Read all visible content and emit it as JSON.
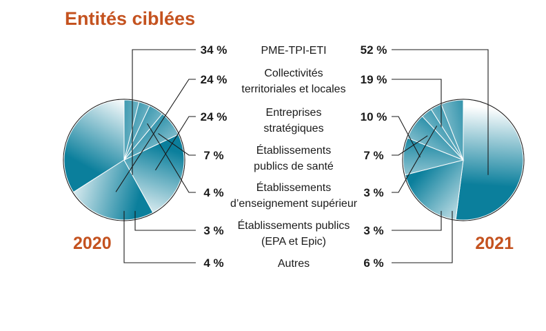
{
  "chart_data": {
    "type": "pie",
    "title": "Entités ciblées",
    "categories": [
      [
        "PME-TPI-ETI"
      ],
      [
        "Collectivités",
        "territoriales et locales"
      ],
      [
        "Entreprises",
        "stratégiques"
      ],
      [
        "Établissements",
        "publics de santé"
      ],
      [
        "Établissements",
        "d’enseignement supérieur"
      ],
      [
        "Établissements publics",
        "(EPA et Epic)"
      ],
      [
        "Autres"
      ]
    ],
    "series": [
      {
        "name": "2020",
        "values": [
          34,
          24,
          24,
          7,
          4,
          3,
          4
        ]
      },
      {
        "name": "2021",
        "values": [
          52,
          19,
          10,
          7,
          3,
          3,
          6
        ]
      }
    ],
    "unit": "%"
  },
  "colors": {
    "title": "#c4521f",
    "accent": "#0b7f9c",
    "line": "#1a1a1a",
    "slice_edge": "#ffffff"
  }
}
